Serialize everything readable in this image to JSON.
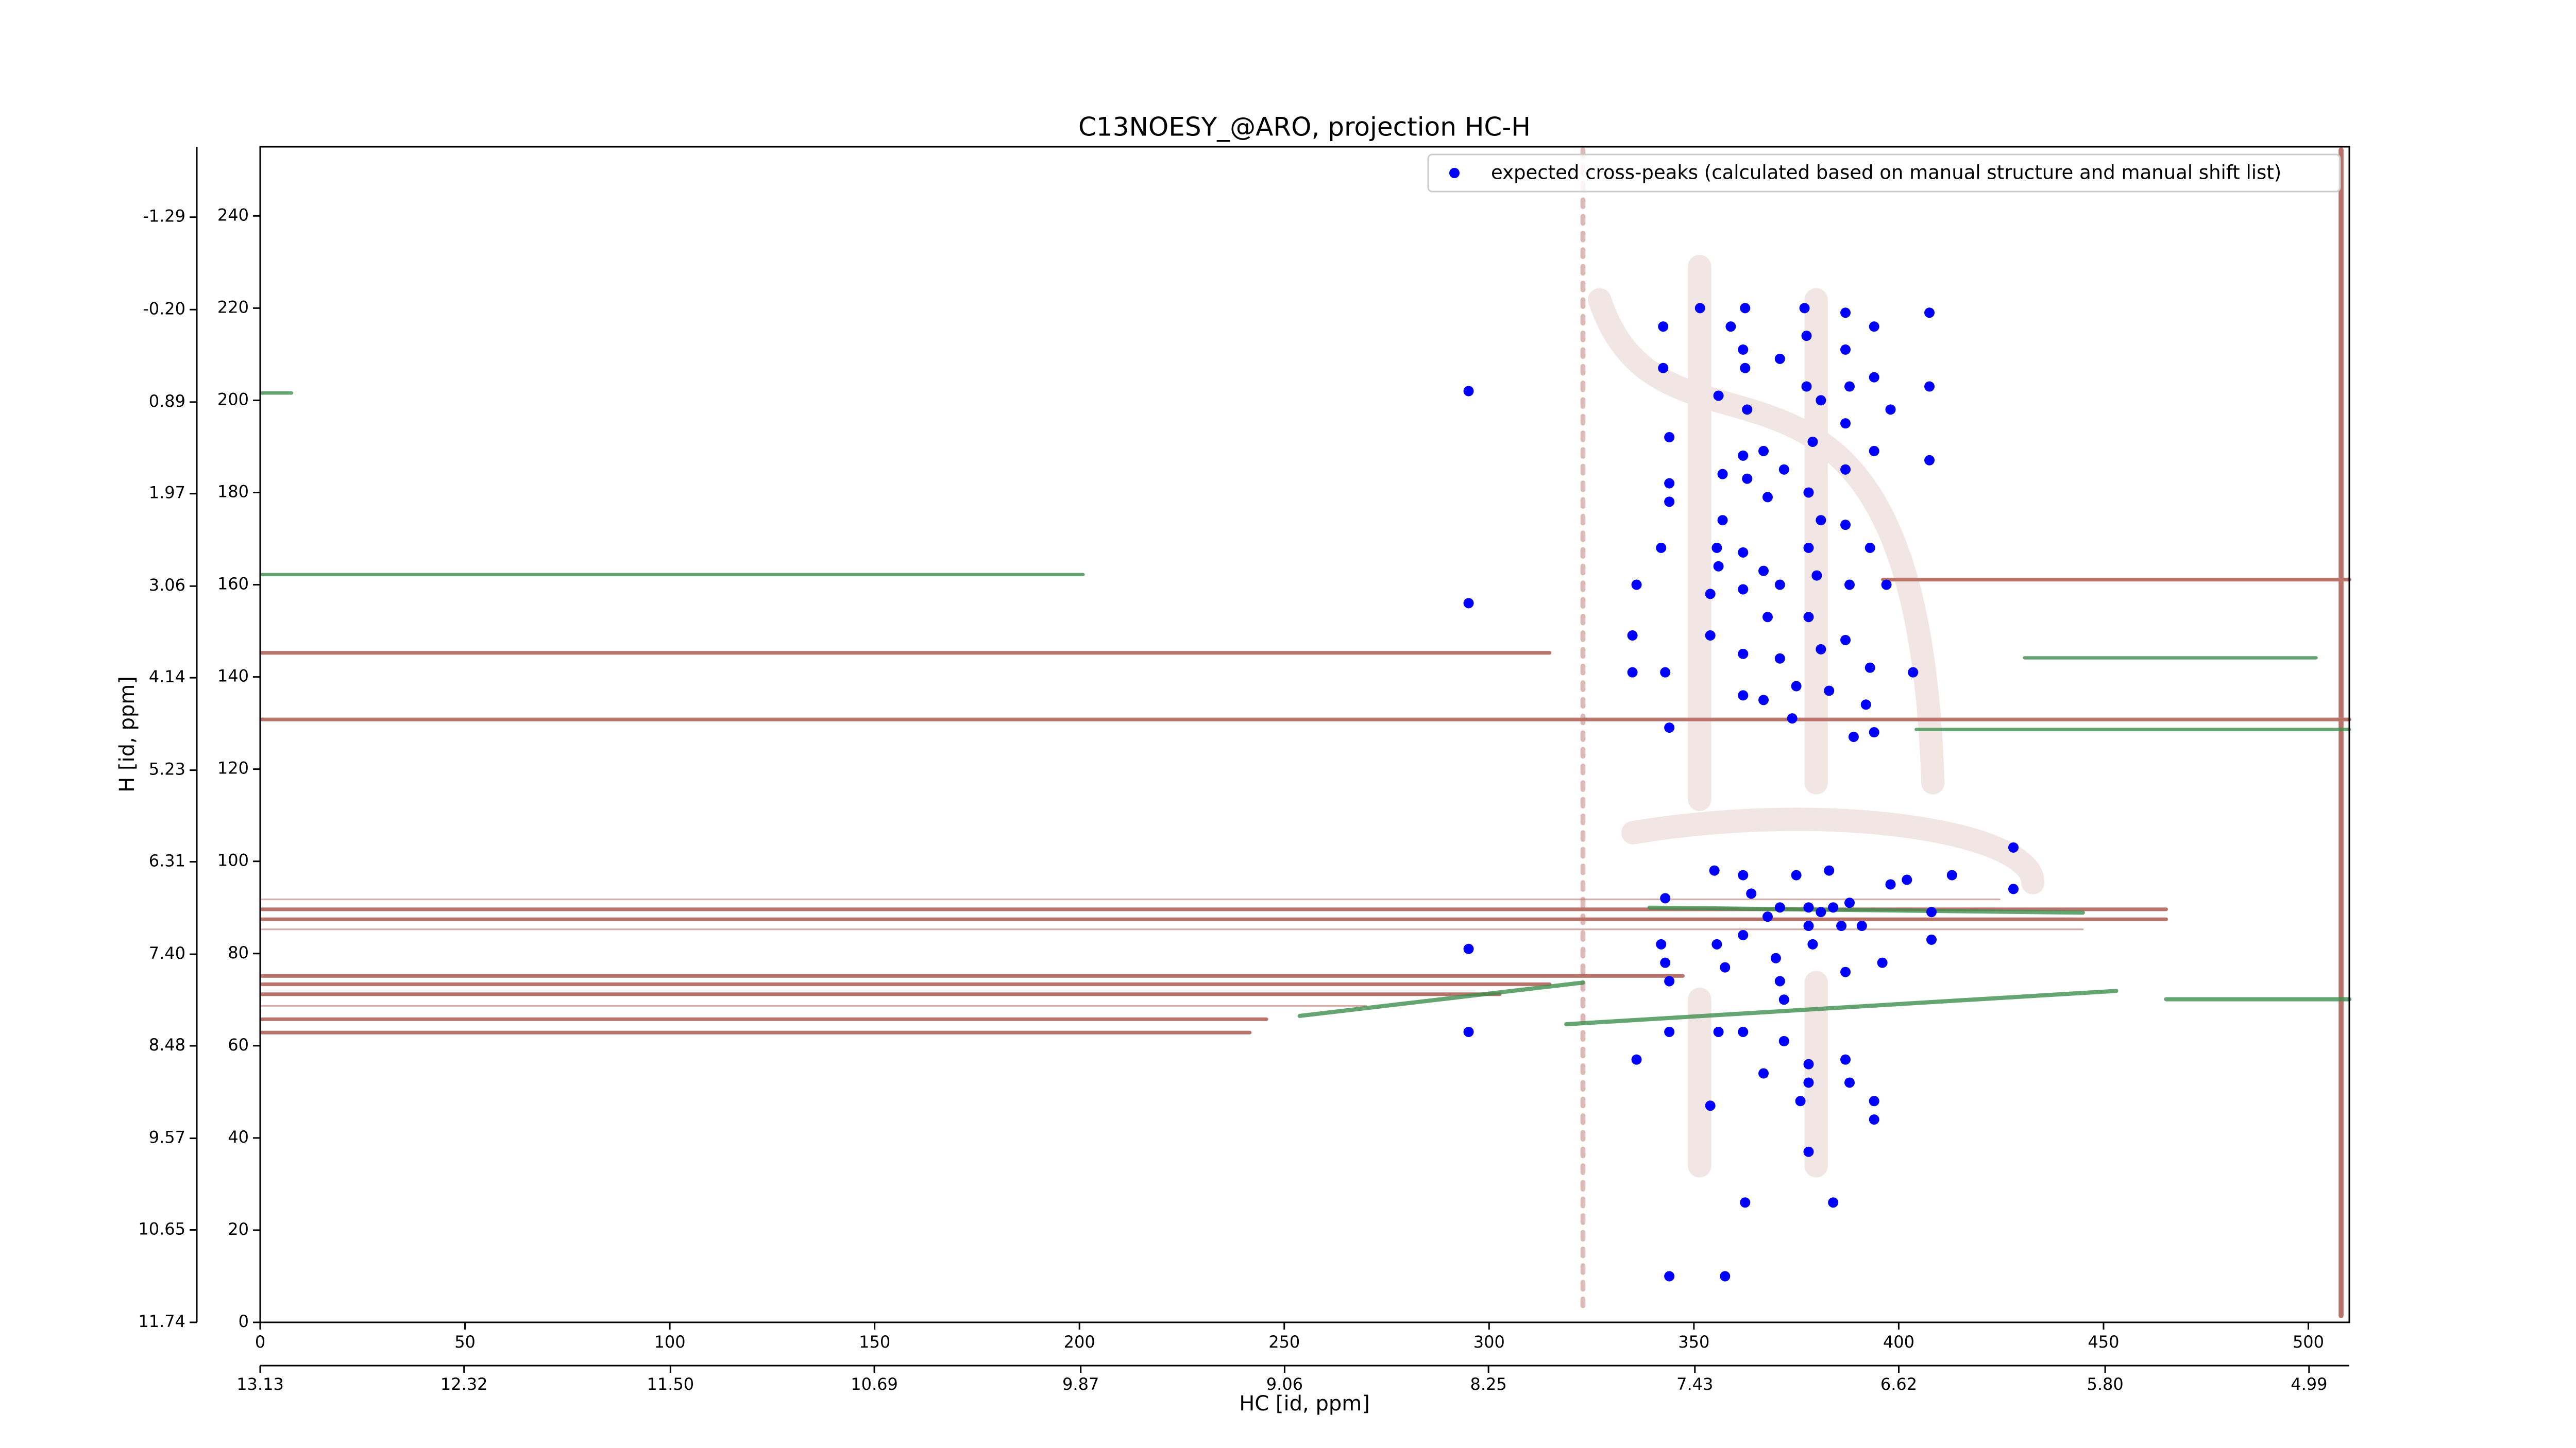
{
  "chart_data": {
    "type": "scatter",
    "title": "C13NOESY_@ARO, projection HC-H",
    "x_label": "HC [id, ppm]",
    "y_label": "H [id, ppm]",
    "xlim": [
      0,
      510
    ],
    "ylim": [
      0,
      255
    ],
    "xticks": [
      0,
      50,
      100,
      150,
      200,
      250,
      300,
      350,
      400,
      450,
      500
    ],
    "yticks": [
      0,
      20,
      40,
      60,
      80,
      100,
      120,
      140,
      160,
      180,
      200,
      220,
      240
    ],
    "x2lim": [
      13.13,
      4.83
    ],
    "x2ticks": [
      13.13,
      12.32,
      {
        "value": 11.5,
        "label": "11.50"
      },
      10.69,
      9.87,
      9.06,
      8.25,
      7.43,
      6.62,
      {
        "value": 5.8,
        "label": "5.80"
      },
      4.99
    ],
    "y2lim": [
      11.74,
      -2.12
    ],
    "y2ticks": [
      11.74,
      10.65,
      9.57,
      8.48,
      {
        "value": 7.4,
        "label": "7.40"
      },
      6.31,
      5.23,
      4.14,
      3.06,
      1.97,
      0.89,
      {
        "value": -0.2,
        "label": "-0.20"
      },
      -1.29
    ],
    "legend": "upper right",
    "x": [
      295,
      295,
      295,
      295,
      342.5,
      342.5,
      344,
      344,
      344,
      342,
      336,
      335,
      335,
      343,
      344,
      351.5,
      355.6,
      356,
      354,
      354,
      362.5,
      359,
      362,
      362.5,
      356,
      363,
      362,
      367,
      357,
      363,
      368,
      357,
      362,
      362,
      367,
      371,
      368,
      362,
      362,
      367,
      374,
      375,
      371,
      377,
      377.5,
      371,
      377.5,
      381,
      379,
      372,
      378,
      381,
      378,
      380,
      378,
      381,
      383,
      387,
      387,
      388,
      387,
      387,
      387,
      388,
      387,
      392,
      389,
      394,
      394,
      398,
      394,
      393,
      397,
      393,
      394,
      407.5,
      407.5,
      407.5,
      403.5,
      343,
      342,
      343,
      344,
      336,
      355,
      362,
      364,
      355.6,
      357.6,
      362,
      368,
      371,
      370,
      371,
      372,
      375,
      378,
      378,
      379,
      381,
      384,
      386,
      388,
      391,
      383,
      387,
      396,
      398,
      402,
      408,
      413,
      428,
      428,
      408,
      356,
      362,
      372,
      378,
      378,
      387,
      388,
      376,
      367,
      354,
      394,
      394,
      378,
      362.5,
      384,
      344,
      357.6,
      344
    ],
    "series": [
      {
        "name": "expected cross-peaks (calculated based on manual structure and manual shift list)",
        "color": "#0000ff",
        "values": [
          202,
          156,
          81,
          63,
          216,
          207,
          192,
          182,
          178,
          168,
          160,
          149,
          141,
          141,
          129,
          220,
          168,
          164,
          158,
          149,
          220,
          216,
          211,
          207,
          201,
          198,
          188,
          189,
          184,
          183,
          179,
          174,
          167,
          159,
          163,
          160,
          153,
          145,
          136,
          135,
          131,
          138,
          144,
          220,
          214,
          209,
          203,
          200,
          191,
          185,
          180,
          174,
          168,
          162,
          153,
          146,
          137,
          219,
          211,
          203,
          195,
          185,
          173,
          160,
          148,
          134,
          127,
          216,
          205,
          198,
          189,
          168,
          160,
          142,
          128,
          219,
          203,
          187,
          141,
          92,
          82,
          78,
          74,
          57,
          98,
          97,
          93,
          82,
          77,
          84,
          88,
          90,
          79,
          74,
          70,
          97,
          90,
          86,
          82,
          89,
          90,
          86,
          91,
          86,
          98,
          76,
          78,
          95,
          96,
          89,
          97,
          103,
          94,
          83,
          63,
          63,
          61,
          56,
          52,
          57,
          52,
          48,
          54,
          47,
          48,
          44,
          37,
          26,
          26,
          10,
          10,
          63
        ]
      }
    ]
  }
}
